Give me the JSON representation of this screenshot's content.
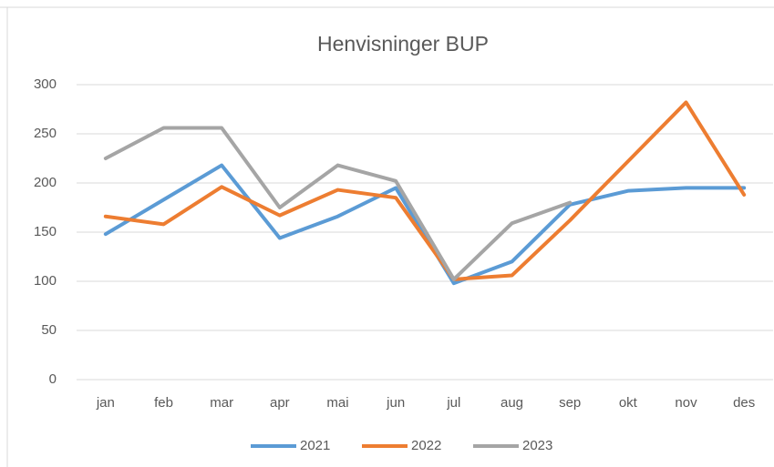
{
  "chart_data": {
    "type": "line",
    "title": "Henvisninger BUP",
    "categories": [
      "jan",
      "feb",
      "mar",
      "apr",
      "mai",
      "jun",
      "jul",
      "aug",
      "sep",
      "okt",
      "nov",
      "des"
    ],
    "series": [
      {
        "name": "2021",
        "color": "#5b9bd5",
        "values": [
          148,
          183,
          218,
          144,
          166,
          195,
          98,
          120,
          178,
          192,
          195,
          195
        ]
      },
      {
        "name": "2022",
        "color": "#ed7d31",
        "values": [
          166,
          158,
          196,
          167,
          193,
          185,
          102,
          106,
          162,
          222,
          282,
          188
        ]
      },
      {
        "name": "2023",
        "color": "#a5a5a5",
        "values": [
          225,
          256,
          256,
          175,
          218,
          202,
          102,
          159,
          180,
          null,
          null,
          null
        ]
      }
    ],
    "ylim": [
      0,
      300
    ],
    "yticks": [
      0,
      50,
      100,
      150,
      200,
      250,
      300
    ],
    "grid": true,
    "legend": "bottom"
  }
}
